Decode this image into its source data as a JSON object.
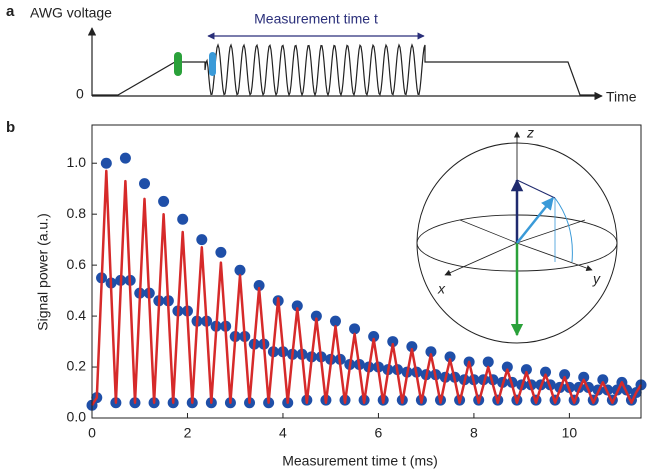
{
  "panel_a": {
    "panel_label": "a",
    "y_label": "AWG voltage",
    "zero_label": "0",
    "span_label": "Measurement time t",
    "x_label": "Time"
  },
  "inset": {
    "z": "z",
    "x": "x",
    "y": "y"
  },
  "chart_data": {
    "type": "line",
    "panel_label": "b",
    "x_label": "Measurement time t (ms)",
    "y_label": "Signal power (a.u.)",
    "xlim": [
      0,
      11.5
    ],
    "xticks": [
      0,
      2,
      4,
      6,
      8,
      10
    ],
    "ylim": [
      0,
      1.15
    ],
    "yticks": [
      {
        "value": 0,
        "label": "0.0"
      },
      0.2,
      0.4,
      0.6,
      0.8,
      {
        "value": 1,
        "label": "1.0"
      }
    ],
    "x": [
      0,
      0.1,
      0.2,
      0.3,
      0.4,
      0.5,
      0.6,
      0.7,
      0.8,
      0.9,
      1,
      1.1,
      1.2,
      1.3,
      1.4,
      1.5,
      1.6,
      1.7,
      1.8,
      1.9,
      2,
      2.1,
      2.2,
      2.3,
      2.4,
      2.5,
      2.6,
      2.7,
      2.8,
      2.9,
      3,
      3.1,
      3.2,
      3.3,
      3.4,
      3.5,
      3.6,
      3.7,
      3.8,
      3.9,
      4,
      4.1,
      4.2,
      4.3,
      4.4,
      4.5,
      4.6,
      4.7,
      4.8,
      4.9,
      5,
      5.1,
      5.2,
      5.3,
      5.4,
      5.5,
      5.6,
      5.7,
      5.8,
      5.9,
      6,
      6.1,
      6.2,
      6.3,
      6.4,
      6.5,
      6.6,
      6.7,
      6.8,
      6.9,
      7,
      7.1,
      7.2,
      7.3,
      7.4,
      7.5,
      7.6,
      7.7,
      7.8,
      7.9,
      8,
      8.1,
      8.2,
      8.3,
      8.4,
      8.5,
      8.6,
      8.7,
      8.8,
      8.9,
      9,
      9.1,
      9.2,
      9.3,
      9.4,
      9.5,
      9.6,
      9.7,
      9.8,
      9.9,
      10,
      10.1,
      10.2,
      10.3,
      10.4,
      10.5,
      10.6,
      10.7,
      10.8,
      10.9,
      11,
      11.1,
      11.2,
      11.3,
      11.4,
      11.5
    ],
    "series": [
      {
        "color": "#1f4fa8",
        "style": "dots",
        "values": [
          0.05,
          0.08,
          0.55,
          1.0,
          0.53,
          0.06,
          0.54,
          1.02,
          0.54,
          0.06,
          0.49,
          0.92,
          0.49,
          0.06,
          0.46,
          0.85,
          0.46,
          0.06,
          0.42,
          0.78,
          0.42,
          0.06,
          0.38,
          0.7,
          0.38,
          0.06,
          0.36,
          0.65,
          0.36,
          0.06,
          0.32,
          0.58,
          0.32,
          0.06,
          0.29,
          0.52,
          0.29,
          0.06,
          0.26,
          0.46,
          0.26,
          0.06,
          0.25,
          0.44,
          0.25,
          0.07,
          0.24,
          0.4,
          0.24,
          0.07,
          0.23,
          0.38,
          0.23,
          0.07,
          0.21,
          0.35,
          0.21,
          0.07,
          0.2,
          0.32,
          0.2,
          0.07,
          0.19,
          0.3,
          0.19,
          0.07,
          0.18,
          0.28,
          0.18,
          0.07,
          0.17,
          0.26,
          0.17,
          0.07,
          0.16,
          0.24,
          0.16,
          0.07,
          0.15,
          0.22,
          0.15,
          0.07,
          0.15,
          0.22,
          0.15,
          0.07,
          0.14,
          0.2,
          0.14,
          0.07,
          0.13,
          0.19,
          0.13,
          0.07,
          0.13,
          0.18,
          0.13,
          0.07,
          0.12,
          0.17,
          0.12,
          0.07,
          0.12,
          0.16,
          0.12,
          0.07,
          0.11,
          0.15,
          0.11,
          0.07,
          0.11,
          0.14,
          0.11,
          0.07,
          0.1,
          0.13
        ]
      },
      {
        "color": "#d62a2a",
        "style": "line",
        "values": [
          0.05,
          0.08,
          0.52,
          0.97,
          0.51,
          0.06,
          0.5,
          0.93,
          0.5,
          0.06,
          0.46,
          0.86,
          0.46,
          0.06,
          0.43,
          0.8,
          0.43,
          0.06,
          0.4,
          0.73,
          0.4,
          0.06,
          0.37,
          0.67,
          0.37,
          0.06,
          0.34,
          0.61,
          0.34,
          0.06,
          0.31,
          0.56,
          0.31,
          0.06,
          0.29,
          0.51,
          0.29,
          0.06,
          0.27,
          0.47,
          0.27,
          0.06,
          0.25,
          0.43,
          0.25,
          0.06,
          0.23,
          0.39,
          0.23,
          0.06,
          0.21,
          0.36,
          0.21,
          0.06,
          0.2,
          0.33,
          0.2,
          0.06,
          0.19,
          0.31,
          0.19,
          0.06,
          0.18,
          0.29,
          0.18,
          0.06,
          0.17,
          0.27,
          0.17,
          0.06,
          0.16,
          0.25,
          0.16,
          0.06,
          0.15,
          0.23,
          0.15,
          0.06,
          0.14,
          0.22,
          0.14,
          0.06,
          0.13,
          0.2,
          0.13,
          0.06,
          0.13,
          0.19,
          0.13,
          0.06,
          0.12,
          0.18,
          0.12,
          0.06,
          0.12,
          0.17,
          0.12,
          0.06,
          0.11,
          0.16,
          0.11,
          0.06,
          0.11,
          0.15,
          0.11,
          0.06,
          0.1,
          0.14,
          0.1,
          0.06,
          0.1,
          0.14,
          0.1,
          0.06,
          0.1,
          0.13
        ]
      }
    ]
  }
}
